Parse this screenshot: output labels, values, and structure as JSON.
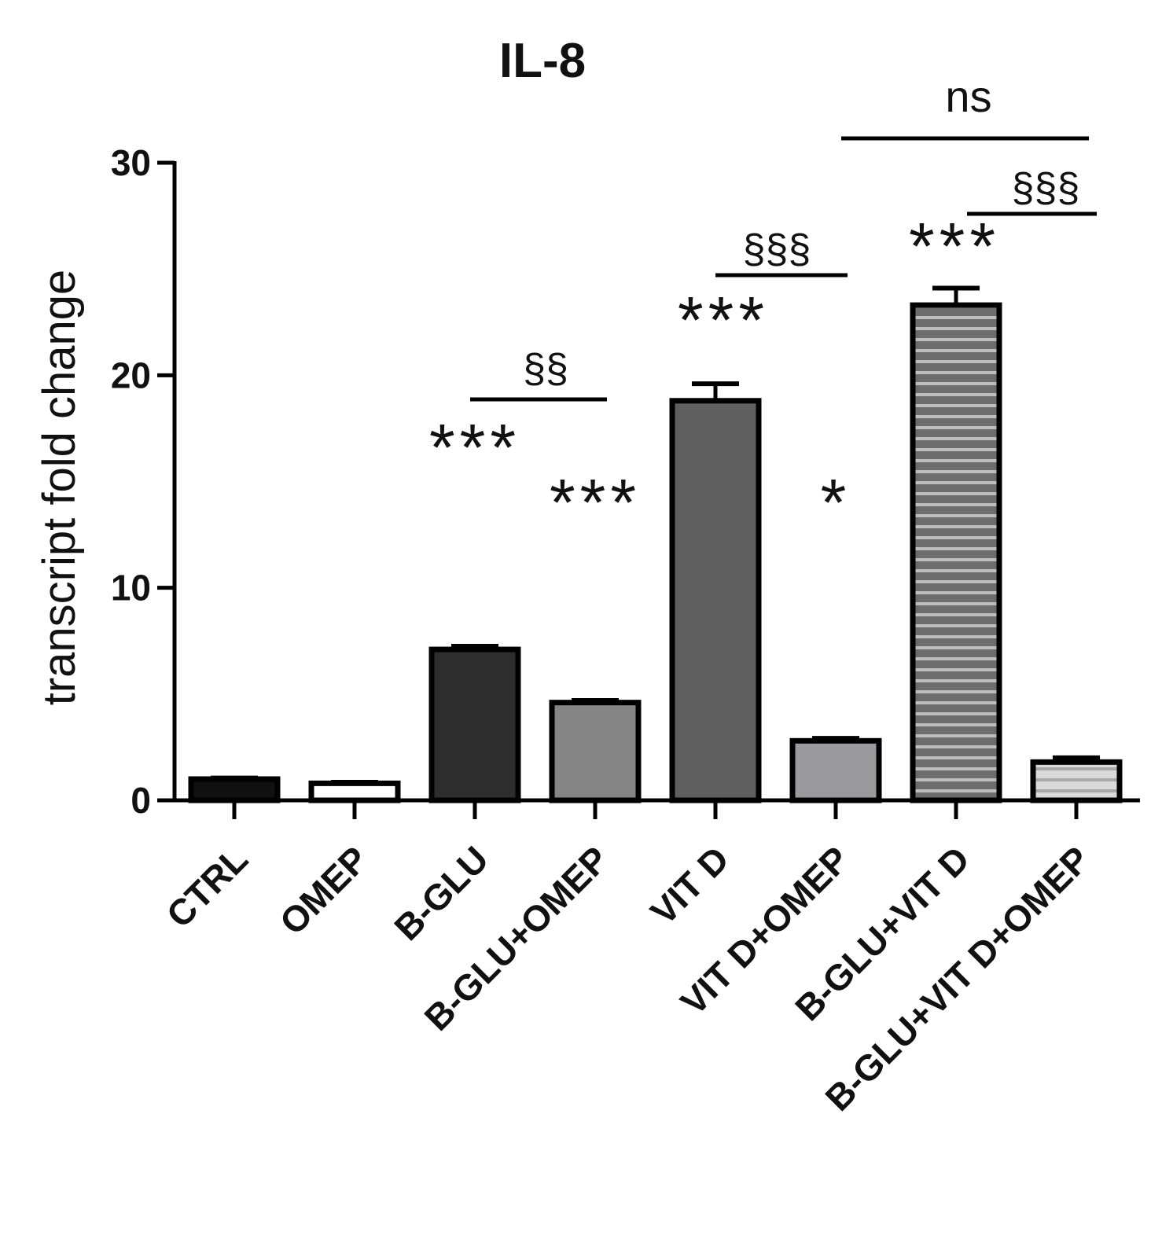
{
  "chart_data": {
    "type": "bar",
    "title": "IL-8",
    "ylabel": "transcript fold change",
    "xlabel": "",
    "ylim": [
      0,
      30
    ],
    "yticks": [
      "0",
      "10",
      "20",
      "30"
    ],
    "categories": [
      "CTRL",
      "OMEP",
      "B-GLU",
      "B-GLU+OMEP",
      "VIT D",
      "VIT D+OMEP",
      "B-GLU+VIT D",
      "B-GLU+VIT D+OMEP"
    ],
    "values": [
      1.0,
      0.8,
      7.1,
      4.6,
      18.8,
      2.8,
      23.3,
      1.8
    ],
    "errors": [
      0.05,
      0.05,
      0.15,
      0.1,
      0.8,
      0.12,
      0.8,
      0.2
    ],
    "bar_fills": [
      "#111111",
      "#ffffff",
      "#2e2e2e",
      "#858585",
      "#5f5f5f",
      "#9a9a9c",
      "striped-dark",
      "striped-light"
    ],
    "significance_stars": [
      {
        "category": "B-GLU",
        "text": "***"
      },
      {
        "category": "B-GLU+OMEP",
        "text": "***"
      },
      {
        "category": "VIT D",
        "text": "***"
      },
      {
        "category": "VIT D+OMEP",
        "text": "*"
      },
      {
        "category": "B-GLU+VIT D",
        "text": "***"
      }
    ],
    "comparison_brackets": [
      {
        "from": "B-GLU",
        "to": "B-GLU+OMEP",
        "text": "§§"
      },
      {
        "from": "VIT D",
        "to": "VIT D+OMEP",
        "text": "§§§"
      },
      {
        "from": "B-GLU+VIT D",
        "to": "B-GLU+VIT D+OMEP",
        "text": "§§§"
      },
      {
        "from": "VIT D+OMEP",
        "to": "B-GLU+VIT D+OMEP",
        "text": "ns"
      }
    ],
    "grid": false,
    "legend": "none"
  }
}
